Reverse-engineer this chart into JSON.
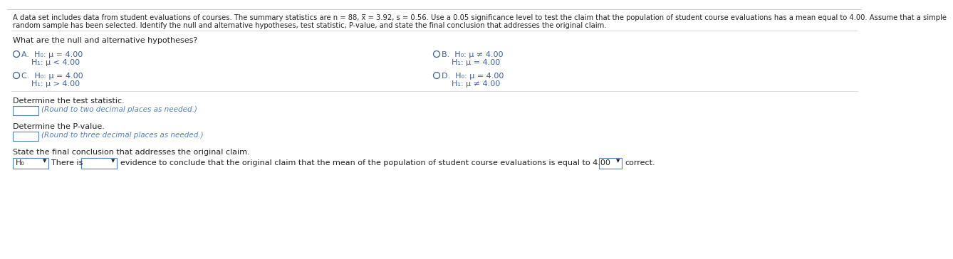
{
  "bg_color": "#ffffff",
  "text_color": "#222222",
  "dark_color": "#333333",
  "blue_color": "#3a5fa0",
  "link_color": "#5580c0",
  "header_text": "A data set includes data from student evaluations of courses. The summary statistics are n = 88, x̅ = 3.92, s = 0.56. Use a 0.05 significance level to test the claim that the population of student course evaluations has a mean equal to 4.00. Assume that a simple",
  "header_text2": "random sample has been selected. Identify the null and alternative hypotheses, test statistic, P-value, and state the final conclusion that addresses the original claim.",
  "question": "What are the null and alternative hypotheses?",
  "optA_line1": "H₀: μ = 4.00",
  "optA_line2": "H₁: μ < 4.00",
  "optB_line1": "H₀: μ ≠ 4.00",
  "optB_line2": "H₁: μ = 4.00",
  "optC_line1": "H₀: μ = 4.00",
  "optC_line2": "H₁: μ > 4.00",
  "optD_line1": "H₀: μ = 4.00",
  "optD_line2": "H₁: μ ≠ 4.00",
  "stat_label": "Determine the test statistic.",
  "stat_hint": "(Round to two decimal places as needed.)",
  "pval_label": "Determine the P-value.",
  "pval_hint": "(Round to three decimal places as needed.)",
  "concl_label": "State the final conclusion that addresses the original claim.",
  "concl_sentence": "evidence to conclude that the original claim that the mean of the population of student course evaluations is equal to 4.00",
  "concl_end": "correct.",
  "h0_label": "H₀",
  "there_is": "There is",
  "fs_header": 7.2,
  "fs_body": 8.0,
  "fs_options": 8.0,
  "fs_hint": 7.5,
  "fs_small": 6.5
}
